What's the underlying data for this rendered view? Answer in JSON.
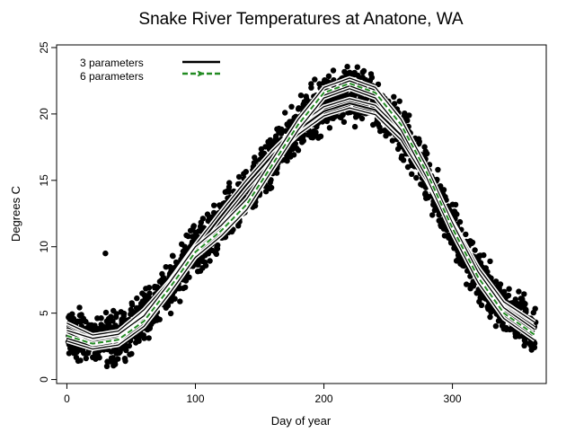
{
  "chart_data": {
    "type": "scatter",
    "title": "Snake River Temperatures at Anatone, WA",
    "xlabel": "Day of year",
    "ylabel": "Degrees C",
    "xlim": [
      -8,
      373
    ],
    "ylim": [
      -0.3,
      25.2
    ],
    "x_ticks": [
      0,
      100,
      200,
      300
    ],
    "y_ticks": [
      0,
      5,
      10,
      15,
      20,
      25
    ],
    "legend": {
      "placement": "top-left",
      "entries": [
        {
          "label": "3 parameters",
          "color": "#000000",
          "style": "solid"
        },
        {
          "label": "6 parameters",
          "color": "#228b22",
          "style": "dashed-arrows"
        }
      ]
    },
    "scatter_summary": {
      "description": "Daily water temperature observations for many years",
      "x_range": [
        1,
        365
      ],
      "spread_degrees": 1.4,
      "notable_outlier": {
        "x": 30,
        "y": 9.5
      },
      "color": "#000000"
    },
    "series": [
      {
        "name": "3 parameters",
        "color": "#000000",
        "band_halfwidth": 0.35,
        "x": [
          0,
          20,
          40,
          60,
          80,
          100,
          120,
          140,
          160,
          180,
          200,
          220,
          240,
          260,
          280,
          300,
          320,
          340,
          365
        ],
        "y": [
          3.9,
          3.0,
          3.3,
          4.9,
          7.1,
          9.8,
          12.3,
          14.7,
          16.9,
          18.8,
          20.2,
          20.8,
          20.3,
          18.4,
          15.3,
          11.6,
          8.1,
          5.5,
          3.9
        ]
      },
      {
        "name": "6 parameters",
        "color": "#228b22",
        "band_halfwidth": 0.4,
        "x": [
          0,
          20,
          40,
          60,
          80,
          100,
          120,
          140,
          160,
          180,
          200,
          220,
          240,
          260,
          280,
          300,
          320,
          340,
          365
        ],
        "y": [
          3.3,
          2.7,
          3.0,
          4.4,
          6.9,
          9.6,
          11.2,
          13.2,
          16.2,
          19.2,
          21.6,
          22.3,
          21.6,
          19.2,
          15.6,
          11.4,
          7.7,
          5.0,
          3.3
        ]
      }
    ]
  }
}
